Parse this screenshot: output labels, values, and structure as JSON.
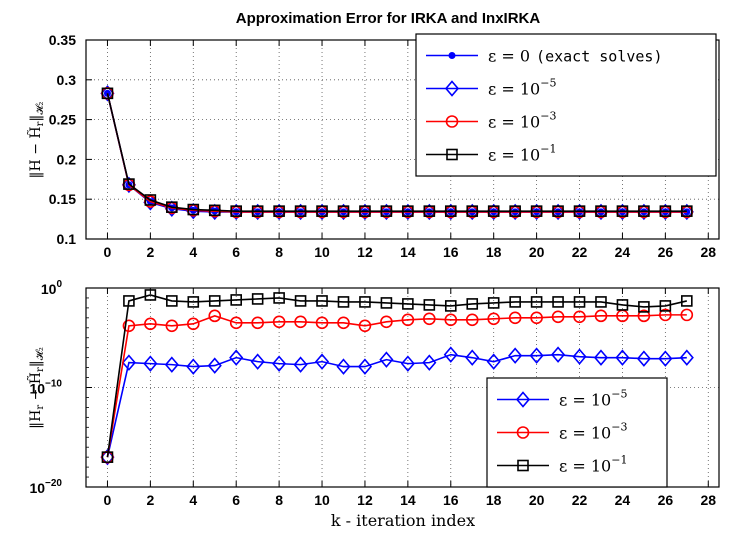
{
  "title": "Approximation Error for IRKA and InxIRKA",
  "xlabel": "k - iteration index",
  "chart_data": [
    {
      "type": "line",
      "panel": "top",
      "title": "Approximation Error for IRKA and InxIRKA",
      "ylabel": "||H − H̃_r||_H2",
      "xlabel": "",
      "xlim": [
        -1,
        28.5
      ],
      "ylim": [
        0.1,
        0.35
      ],
      "yscale": "linear",
      "xticks": [
        "0",
        "2",
        "4",
        "6",
        "8",
        "10",
        "12",
        "14",
        "16",
        "18",
        "20",
        "22",
        "24",
        "26",
        "28"
      ],
      "yticks": [
        "0.1",
        "0.15",
        "0.2",
        "0.25",
        "0.3",
        "0.35"
      ],
      "grid": true,
      "legend_position": "top-right",
      "x": [
        0,
        1,
        2,
        3,
        4,
        5,
        6,
        7,
        8,
        9,
        10,
        11,
        12,
        13,
        14,
        15,
        16,
        17,
        18,
        19,
        20,
        21,
        22,
        23,
        24,
        25,
        26,
        27
      ],
      "series": [
        {
          "name": "ε = 0 (exact solves)",
          "name_prefix": "ε = 0",
          "name_note": "(exact solves)",
          "color": "#0000ff",
          "marker": "dot",
          "values": [
            0.283,
            0.168,
            0.147,
            0.139,
            0.136,
            0.135,
            0.134,
            0.134,
            0.134,
            0.134,
            0.134,
            0.134,
            0.134,
            0.134,
            0.134,
            0.134,
            0.134,
            0.134,
            0.134,
            0.134,
            0.134,
            0.134,
            0.134,
            0.134,
            0.134,
            0.134,
            0.134,
            0.134
          ]
        },
        {
          "name": "ε = 10^-5",
          "name_prefix": "ε = 10",
          "exponent": "−5",
          "color": "#0000ff",
          "marker": "diamond",
          "values": [
            0.283,
            0.168,
            0.146,
            0.138,
            0.135,
            0.134,
            0.134,
            0.134,
            0.134,
            0.134,
            0.134,
            0.134,
            0.134,
            0.134,
            0.134,
            0.134,
            0.134,
            0.134,
            0.134,
            0.134,
            0.134,
            0.134,
            0.134,
            0.134,
            0.134,
            0.134,
            0.134,
            0.134
          ]
        },
        {
          "name": "ε = 10^-3",
          "name_prefix": "ε = 10",
          "exponent": "−3",
          "color": "#ff0000",
          "marker": "circle",
          "values": [
            0.283,
            0.168,
            0.147,
            0.139,
            0.136,
            0.135,
            0.134,
            0.134,
            0.134,
            0.134,
            0.134,
            0.134,
            0.134,
            0.134,
            0.134,
            0.134,
            0.134,
            0.134,
            0.134,
            0.134,
            0.134,
            0.134,
            0.134,
            0.134,
            0.134,
            0.134,
            0.134,
            0.134
          ]
        },
        {
          "name": "ε = 10^-1",
          "name_prefix": "ε = 10",
          "exponent": "−1",
          "color": "#000000",
          "marker": "square",
          "values": [
            0.283,
            0.169,
            0.149,
            0.14,
            0.137,
            0.136,
            0.135,
            0.135,
            0.135,
            0.135,
            0.135,
            0.135,
            0.135,
            0.135,
            0.135,
            0.135,
            0.135,
            0.135,
            0.135,
            0.135,
            0.135,
            0.135,
            0.135,
            0.135,
            0.135,
            0.135,
            0.135,
            0.135
          ]
        }
      ]
    },
    {
      "type": "line",
      "panel": "bottom",
      "title": "",
      "ylabel": "||H_r − H̃_r||_H2",
      "xlabel": "k - iteration index",
      "xlim": [
        -1,
        28.5
      ],
      "ylim_log10": [
        -20,
        0
      ],
      "yscale": "log",
      "xticks": [
        "0",
        "2",
        "4",
        "6",
        "8",
        "10",
        "12",
        "14",
        "16",
        "18",
        "20",
        "22",
        "24",
        "26",
        "28"
      ],
      "yticks": [
        {
          "base": "10",
          "exp": "0",
          "log10": 0
        },
        {
          "base": "10",
          "exp": "−10",
          "log10": -10
        },
        {
          "base": "10",
          "exp": "−20",
          "log10": -20
        }
      ],
      "grid": true,
      "legend_position": "bottom-right",
      "x": [
        0,
        1,
        2,
        3,
        4,
        5,
        6,
        7,
        8,
        9,
        10,
        11,
        12,
        13,
        14,
        15,
        16,
        17,
        18,
        19,
        20,
        21,
        22,
        23,
        24,
        25,
        26,
        27
      ],
      "series": [
        {
          "name": "ε = 10^-5",
          "name_prefix": "ε = 10",
          "exponent": "−5",
          "color": "#0000ff",
          "marker": "diamond",
          "log10_values": [
            -17,
            -7.5,
            -7.6,
            -7.7,
            -7.9,
            -7.8,
            -7.0,
            -7.4,
            -7.6,
            -7.7,
            -7.4,
            -7.9,
            -7.9,
            -7.2,
            -7.6,
            -7.5,
            -6.7,
            -7.0,
            -7.4,
            -6.8,
            -6.8,
            -6.7,
            -6.9,
            -7.0,
            -7.0,
            -7.1,
            -7.1,
            -7.0
          ]
        },
        {
          "name": "ε = 10^-3",
          "name_prefix": "ε = 10",
          "exponent": "−3",
          "color": "#ff0000",
          "marker": "circle",
          "log10_values": [
            -17,
            -3.8,
            -3.6,
            -3.8,
            -3.6,
            -2.8,
            -3.5,
            -3.5,
            -3.4,
            -3.4,
            -3.5,
            -3.5,
            -3.8,
            -3.4,
            -3.2,
            -3.1,
            -3.2,
            -3.2,
            -3.1,
            -3.0,
            -3.0,
            -2.9,
            -2.9,
            -2.8,
            -2.8,
            -2.8,
            -2.7,
            -2.7
          ]
        },
        {
          "name": "ε = 10^-1",
          "name_prefix": "ε = 10",
          "exponent": "−1",
          "color": "#000000",
          "marker": "square",
          "log10_values": [
            -17,
            -1.3,
            -0.7,
            -1.3,
            -1.4,
            -1.3,
            -1.2,
            -1.1,
            -1.0,
            -1.3,
            -1.3,
            -1.4,
            -1.4,
            -1.5,
            -1.6,
            -1.7,
            -1.8,
            -1.6,
            -1.5,
            -1.4,
            -1.4,
            -1.4,
            -1.4,
            -1.4,
            -1.7,
            -1.9,
            -1.8,
            -1.3
          ]
        }
      ]
    }
  ]
}
